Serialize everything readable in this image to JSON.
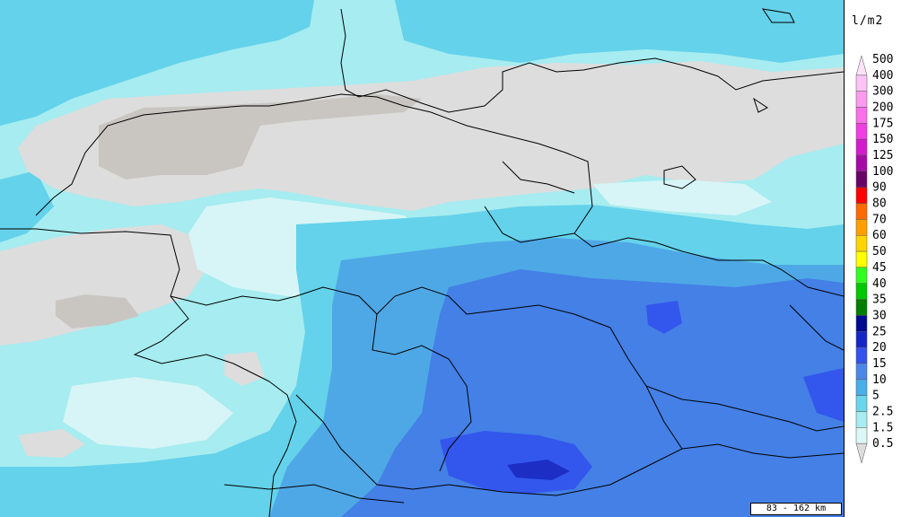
{
  "legend": {
    "unit": "l/m2",
    "classes": [
      {
        "label": "500",
        "color": "#fde2f9"
      },
      {
        "label": "400",
        "color": "#fcc3f4"
      },
      {
        "label": "300",
        "color": "#fb9bef"
      },
      {
        "label": "200",
        "color": "#f970ea"
      },
      {
        "label": "175",
        "color": "#ef3fe2"
      },
      {
        "label": "150",
        "color": "#d21ccb"
      },
      {
        "label": "125",
        "color": "#a50aa5"
      },
      {
        "label": "100",
        "color": "#6a0266"
      },
      {
        "label": "90",
        "color": "#ff0000"
      },
      {
        "label": "80",
        "color": "#ff6a00"
      },
      {
        "label": "70",
        "color": "#ff9f00"
      },
      {
        "label": "60",
        "color": "#ffd400"
      },
      {
        "label": "50",
        "color": "#ffff00"
      },
      {
        "label": "45",
        "color": "#30ff1e"
      },
      {
        "label": "40",
        "color": "#00c800"
      },
      {
        "label": "35",
        "color": "#007e00"
      },
      {
        "label": "30",
        "color": "#000a8c"
      },
      {
        "label": "25",
        "color": "#1426c6"
      },
      {
        "label": "20",
        "color": "#3352ee"
      },
      {
        "label": "15",
        "color": "#4c86ea"
      },
      {
        "label": "10",
        "color": "#4aaee8"
      },
      {
        "label": "5",
        "color": "#6ad6ec"
      },
      {
        "label": "2.5",
        "color": "#a6ecf0"
      },
      {
        "label": "1.5",
        "color": "#dcf8f6"
      },
      {
        "label": "0.5",
        "color": "#dcdcdc"
      }
    ]
  },
  "scale": {
    "label": "83 - 162 km"
  },
  "colors": {
    "sea": "#bfeff4",
    "c05": "#dddddd",
    "c05_dark": "#c9c6c2",
    "c15": "#d7f5f6",
    "c25": "#9fe9ef",
    "c5": "#64d2ea",
    "c10": "#4fa8e6",
    "c15b": "#4480e6",
    "c20": "#3357ec",
    "c25b": "#1c2ec4",
    "border": "#000000"
  }
}
